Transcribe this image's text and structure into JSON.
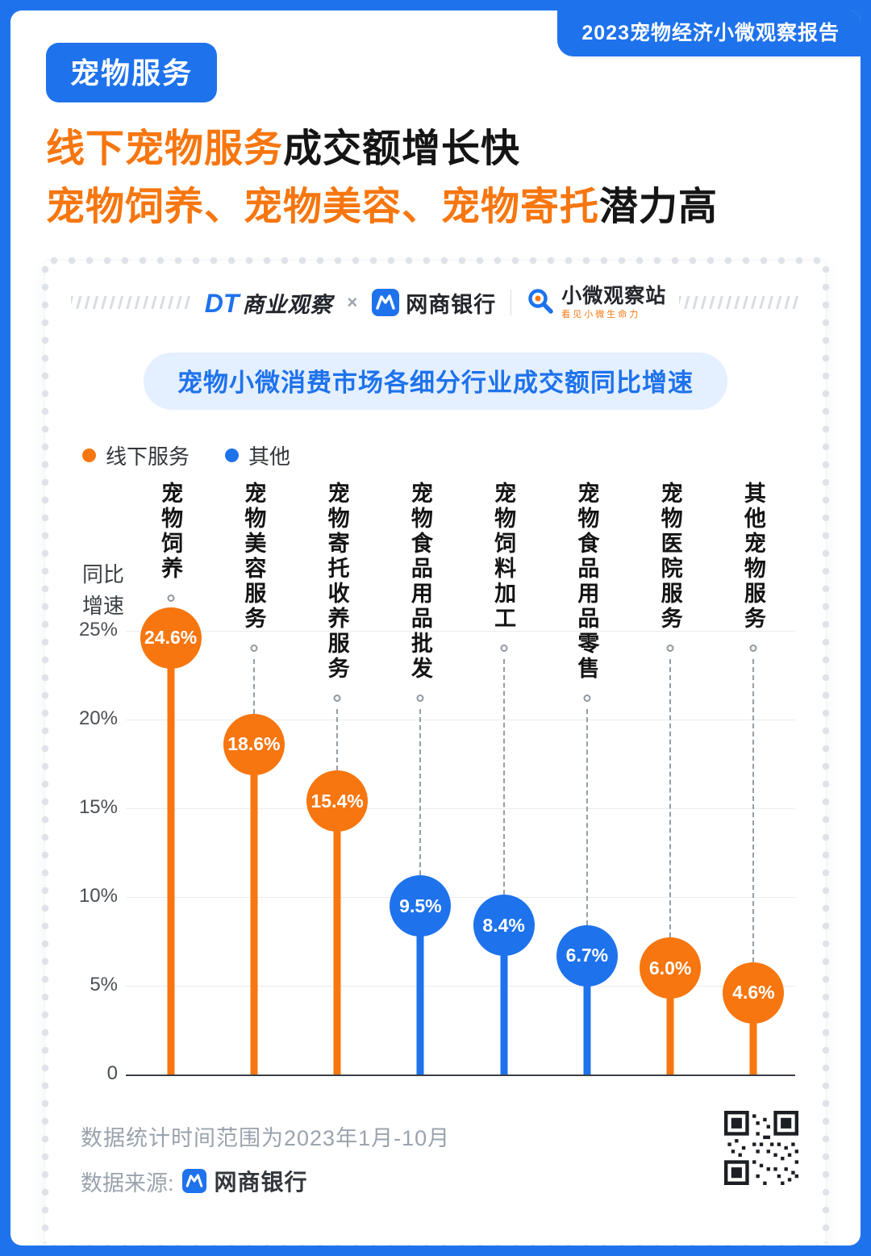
{
  "theme": {
    "blue": "#1e72ec",
    "orange": "#f7760f",
    "pill_bg": "#e4efff",
    "gray_text": "#9aa3ad",
    "grid": "#ececec"
  },
  "header": {
    "report_title": "2023宠物经济小微观察报告",
    "category_badge": "宠物服务",
    "headline": {
      "line1_highlight": "线下宠物服务",
      "line1_rest": "成交额增长快",
      "line2_highlight": "宠物饲养、宠物美容、宠物寄托",
      "line2_rest": "潜力高"
    }
  },
  "logos": {
    "dt_mark": "DT",
    "dt_text": "商业观察",
    "separator1": "×",
    "mybank": "网商银行",
    "station": "小微观察站",
    "station_sub": "看见小微生命力"
  },
  "chart": {
    "title": "宠物小微消费市场各细分行业成交额同比增速",
    "ylabel": "同比增速",
    "legend": [
      {
        "label": "线下服务",
        "color_key": "orange"
      },
      {
        "label": "其他",
        "color_key": "blue"
      }
    ]
  },
  "chart_data": {
    "type": "lollipop",
    "title": "宠物小微消费市场各细分行业成交额同比增速",
    "ylabel": "同比增速",
    "categories": [
      "宠物饲养",
      "宠物美容服务",
      "宠物寄托收养服务",
      "宠物食品用品批发",
      "宠物饲料加工",
      "宠物食品用品零售",
      "宠物医院服务",
      "其他宠物服务"
    ],
    "values": [
      24.6,
      18.6,
      15.4,
      9.5,
      8.4,
      6.7,
      6.0,
      4.6
    ],
    "value_labels": [
      "24.6%",
      "18.6%",
      "15.4%",
      "9.5%",
      "8.4%",
      "6.7%",
      "6.0%",
      "4.6%"
    ],
    "series": [
      "线下服务",
      "线下服务",
      "线下服务",
      "其他",
      "其他",
      "其他",
      "线下服务",
      "线下服务"
    ],
    "colors": [
      "orange",
      "orange",
      "orange",
      "blue",
      "blue",
      "blue",
      "orange",
      "orange"
    ],
    "ylim": [
      0,
      25
    ],
    "yticks": [
      0,
      5,
      10,
      15,
      20,
      25
    ],
    "ytick_labels": [
      "0",
      "5%",
      "10%",
      "15%",
      "20%",
      "25%"
    ],
    "grid": true,
    "legend_position": "top-left"
  },
  "footer": {
    "note": "数据统计时间范围为2023年1月-10月",
    "source_label": "数据来源:",
    "source_name": "网商银行"
  }
}
